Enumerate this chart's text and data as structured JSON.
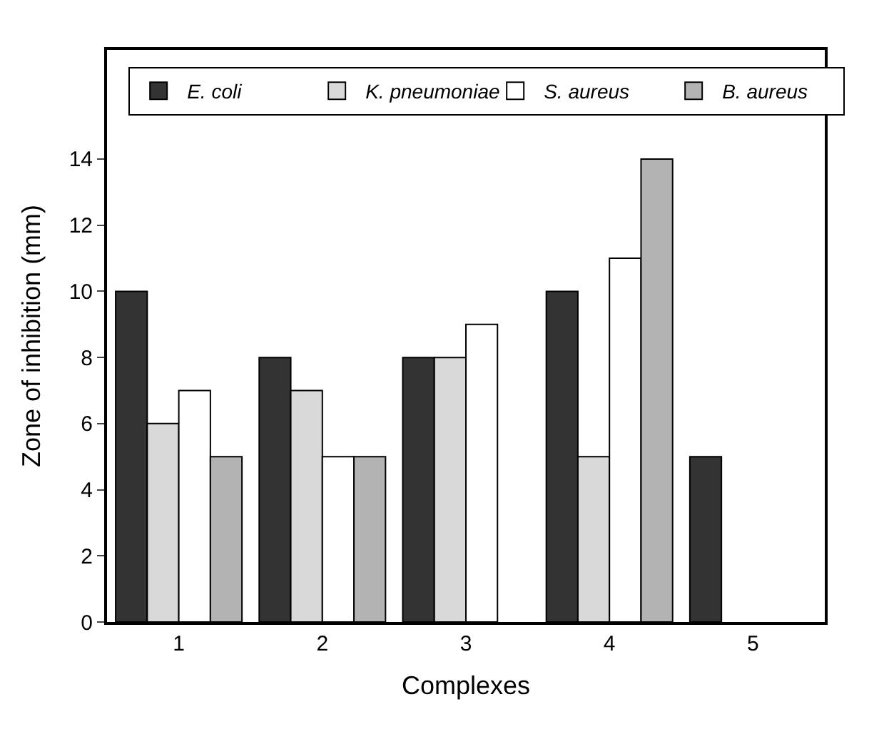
{
  "chart_data": {
    "type": "bar",
    "xlabel": "Complexes",
    "ylabel": "Zone of inhibition (mm)",
    "categories": [
      "1",
      "2",
      "3",
      "4",
      "5"
    ],
    "series": [
      {
        "name": "E. coli",
        "color": "#333333",
        "values": [
          10,
          8,
          8,
          10,
          5
        ]
      },
      {
        "name": "K. pneumoniae",
        "color": "#d9d9d9",
        "values": [
          6,
          7,
          8,
          5,
          null
        ]
      },
      {
        "name": "S. aureus",
        "color": "#ffffff",
        "values": [
          7,
          5,
          9,
          11,
          null
        ]
      },
      {
        "name": "B. aureus",
        "color": "#b3b3b3",
        "values": [
          5,
          5,
          null,
          14,
          null
        ]
      }
    ],
    "ylim": [
      0,
      17.3
    ],
    "yticks": [
      0,
      2,
      4,
      6,
      8,
      10,
      12,
      14
    ],
    "legend": "top left"
  }
}
